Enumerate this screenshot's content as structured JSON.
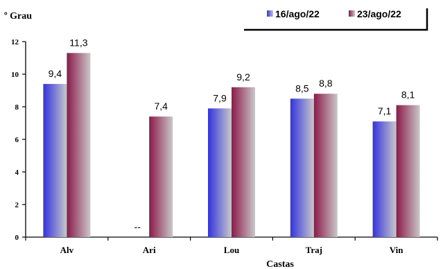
{
  "chart_data": {
    "type": "bar",
    "ylabel": "º Grau",
    "xlabel": "Castas",
    "ylim": [
      0,
      12
    ],
    "yticks": [
      0,
      2,
      4,
      6,
      8,
      10,
      12
    ],
    "categories": [
      "Alv",
      "Ari",
      "Lou",
      "Traj",
      "Vin"
    ],
    "series": [
      {
        "name": "16/ago/22",
        "values": [
          9.4,
          null,
          7.9,
          8.5,
          7.1
        ],
        "labels": [
          "9,4",
          "--",
          "7,9",
          "8,5",
          "7,1"
        ],
        "gradient": [
          "#3333dd",
          "#c8c8c8"
        ]
      },
      {
        "name": "23/ago/22",
        "values": [
          11.3,
          7.4,
          9.2,
          8.8,
          8.1
        ],
        "labels": [
          "11,3",
          "7,4",
          "9,2",
          "8,8",
          "8,1"
        ],
        "gradient": [
          "#8b1a4a",
          "#c8c8c8"
        ]
      }
    ],
    "grid": false,
    "legend": "top-right"
  }
}
